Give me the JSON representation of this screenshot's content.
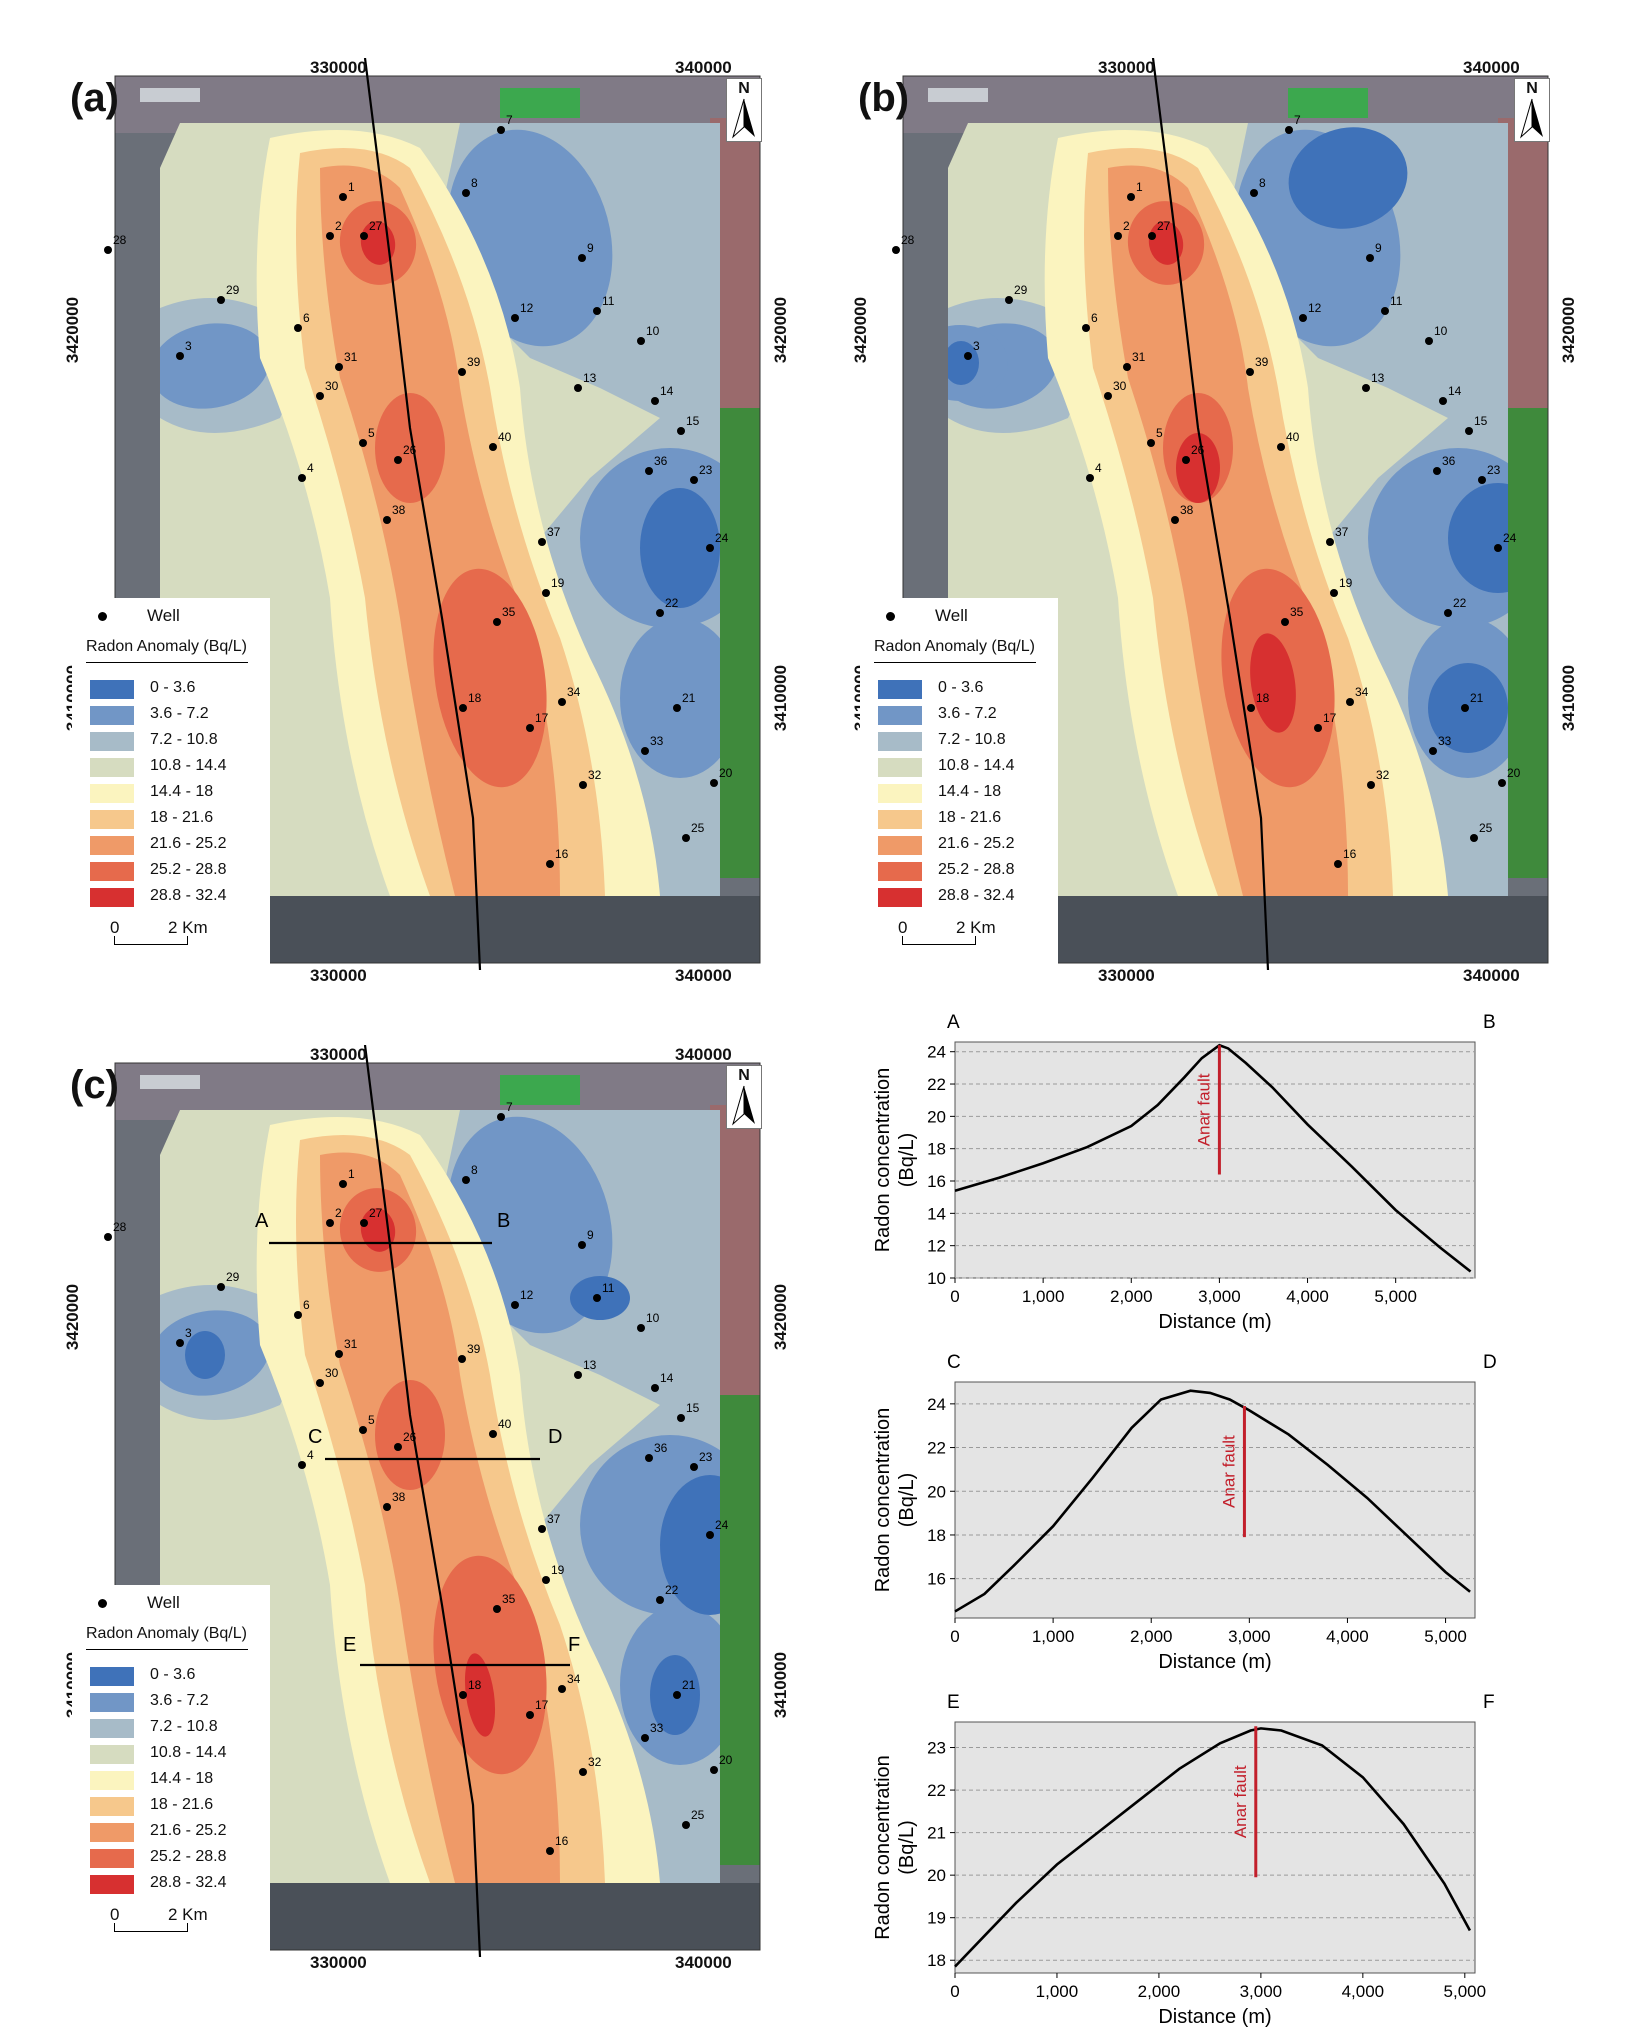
{
  "maps": [
    {
      "id": "a",
      "label": "(a)",
      "x_ticks": [
        "330000",
        "340000"
      ],
      "y_ticks": [
        "3420000",
        "3410000"
      ]
    },
    {
      "id": "b",
      "label": "(b)",
      "x_ticks": [
        "330000",
        "340000"
      ],
      "y_ticks": [
        "3420000",
        "3410000"
      ]
    },
    {
      "id": "c",
      "label": "(c)",
      "x_ticks": [
        "330000",
        "340000"
      ],
      "y_ticks": [
        "3420000",
        "3410000"
      ]
    }
  ],
  "north_label": "N",
  "legend": {
    "well_label": "Well",
    "title": "Radon Anomaly (Bq/L)",
    "classes": [
      {
        "label": "0 - 3.6",
        "color": "#3f72b9"
      },
      {
        "label": "3.6 - 7.2",
        "color": "#7196c6"
      },
      {
        "label": "7.2 - 10.8",
        "color": "#a7bbc8"
      },
      {
        "label": "10.8 - 14.4",
        "color": "#d6dcc0"
      },
      {
        "label": "14.4 - 18",
        "color": "#fbf4bf"
      },
      {
        "label": "18 - 21.6",
        "color": "#f6c88c"
      },
      {
        "label": "21.6 - 25.2",
        "color": "#ef9a68"
      },
      {
        "label": "25.2 - 28.8",
        "color": "#e66a4c"
      },
      {
        "label": "28.8 - 32.4",
        "color": "#d73030"
      }
    ],
    "scale_start": "0",
    "scale_end": "2 Km"
  },
  "wells": [
    "1",
    "2",
    "3",
    "4",
    "5",
    "6",
    "7",
    "8",
    "9",
    "10",
    "11",
    "12",
    "13",
    "14",
    "15",
    "16",
    "17",
    "18",
    "19",
    "20",
    "21",
    "22",
    "23",
    "24",
    "25",
    "26",
    "27",
    "28",
    "29",
    "30",
    "31",
    "32",
    "33",
    "34",
    "35",
    "36",
    "37",
    "38",
    "39",
    "40"
  ],
  "profile_lines": [
    {
      "start": "A",
      "end": "B"
    },
    {
      "start": "C",
      "end": "D"
    },
    {
      "start": "E",
      "end": "F"
    }
  ],
  "chart_data": [
    {
      "type": "line",
      "corner_left": "A",
      "corner_right": "B",
      "xlabel": "Distance (m)",
      "ylabel": "Radon concentration (Bq/L)",
      "xlim": [
        0,
        5900
      ],
      "ylim": [
        10,
        24.6
      ],
      "x_ticks": [
        0,
        1000,
        2000,
        3000,
        4000,
        5000
      ],
      "x_tick_labels": [
        "0",
        "1,000",
        "2,000",
        "3,000",
        "4,000",
        "5,000"
      ],
      "y_ticks": [
        10,
        12,
        14,
        16,
        18,
        20,
        22,
        24
      ],
      "fault_label": "Anar fault",
      "fault_x": 3000,
      "fault_y_range": [
        16.4,
        24.4
      ],
      "x": [
        0,
        500,
        1000,
        1500,
        2000,
        2300,
        2600,
        2800,
        3000,
        3100,
        3300,
        3600,
        4000,
        4500,
        5000,
        5500,
        5850
      ],
      "y": [
        15.4,
        16.2,
        17.1,
        18.1,
        19.4,
        20.7,
        22.4,
        23.6,
        24.4,
        24.2,
        23.3,
        21.8,
        19.5,
        16.9,
        14.2,
        11.9,
        10.4
      ]
    },
    {
      "type": "line",
      "corner_left": "C",
      "corner_right": "D",
      "xlabel": "Distance (m)",
      "ylabel": "Radon concentration (Bq/L)",
      "xlim": [
        0,
        5300
      ],
      "ylim": [
        14.2,
        25
      ],
      "x_ticks": [
        0,
        1000,
        2000,
        3000,
        4000,
        5000
      ],
      "x_tick_labels": [
        "0",
        "1,000",
        "2,000",
        "3,000",
        "4,000",
        "5,000"
      ],
      "y_ticks": [
        16,
        18,
        20,
        22,
        24
      ],
      "fault_label": "Anar fault",
      "fault_x": 2950,
      "fault_y_range": [
        17.9,
        23.9
      ],
      "x": [
        0,
        300,
        600,
        1000,
        1400,
        1800,
        2100,
        2400,
        2600,
        2800,
        3000,
        3400,
        3800,
        4200,
        4600,
        5000,
        5250
      ],
      "y": [
        14.5,
        15.3,
        16.6,
        18.4,
        20.6,
        22.9,
        24.2,
        24.6,
        24.5,
        24.2,
        23.7,
        22.6,
        21.2,
        19.7,
        18.0,
        16.3,
        15.4
      ]
    },
    {
      "type": "line",
      "corner_left": "E",
      "corner_right": "F",
      "xlabel": "Distance (m)",
      "ylabel": "Radon concentration (Bq/L)",
      "xlim": [
        0,
        5100
      ],
      "ylim": [
        17.7,
        23.6
      ],
      "x_ticks": [
        0,
        1000,
        2000,
        3000,
        4000,
        5000
      ],
      "x_tick_labels": [
        "0",
        "1,000",
        "2,000",
        "3,000",
        "4,000",
        "5,000"
      ],
      "y_ticks": [
        18,
        19,
        20,
        21,
        22,
        23
      ],
      "fault_label": "Anar fault",
      "fault_x": 2950,
      "fault_y_range": [
        19.95,
        23.5
      ],
      "x": [
        0,
        300,
        600,
        1000,
        1400,
        1800,
        2200,
        2600,
        2900,
        3000,
        3200,
        3600,
        4000,
        4400,
        4800,
        5050
      ],
      "y": [
        17.85,
        18.6,
        19.35,
        20.25,
        21.0,
        21.75,
        22.5,
        23.1,
        23.4,
        23.45,
        23.4,
        23.05,
        22.3,
        21.2,
        19.8,
        18.7
      ]
    }
  ]
}
